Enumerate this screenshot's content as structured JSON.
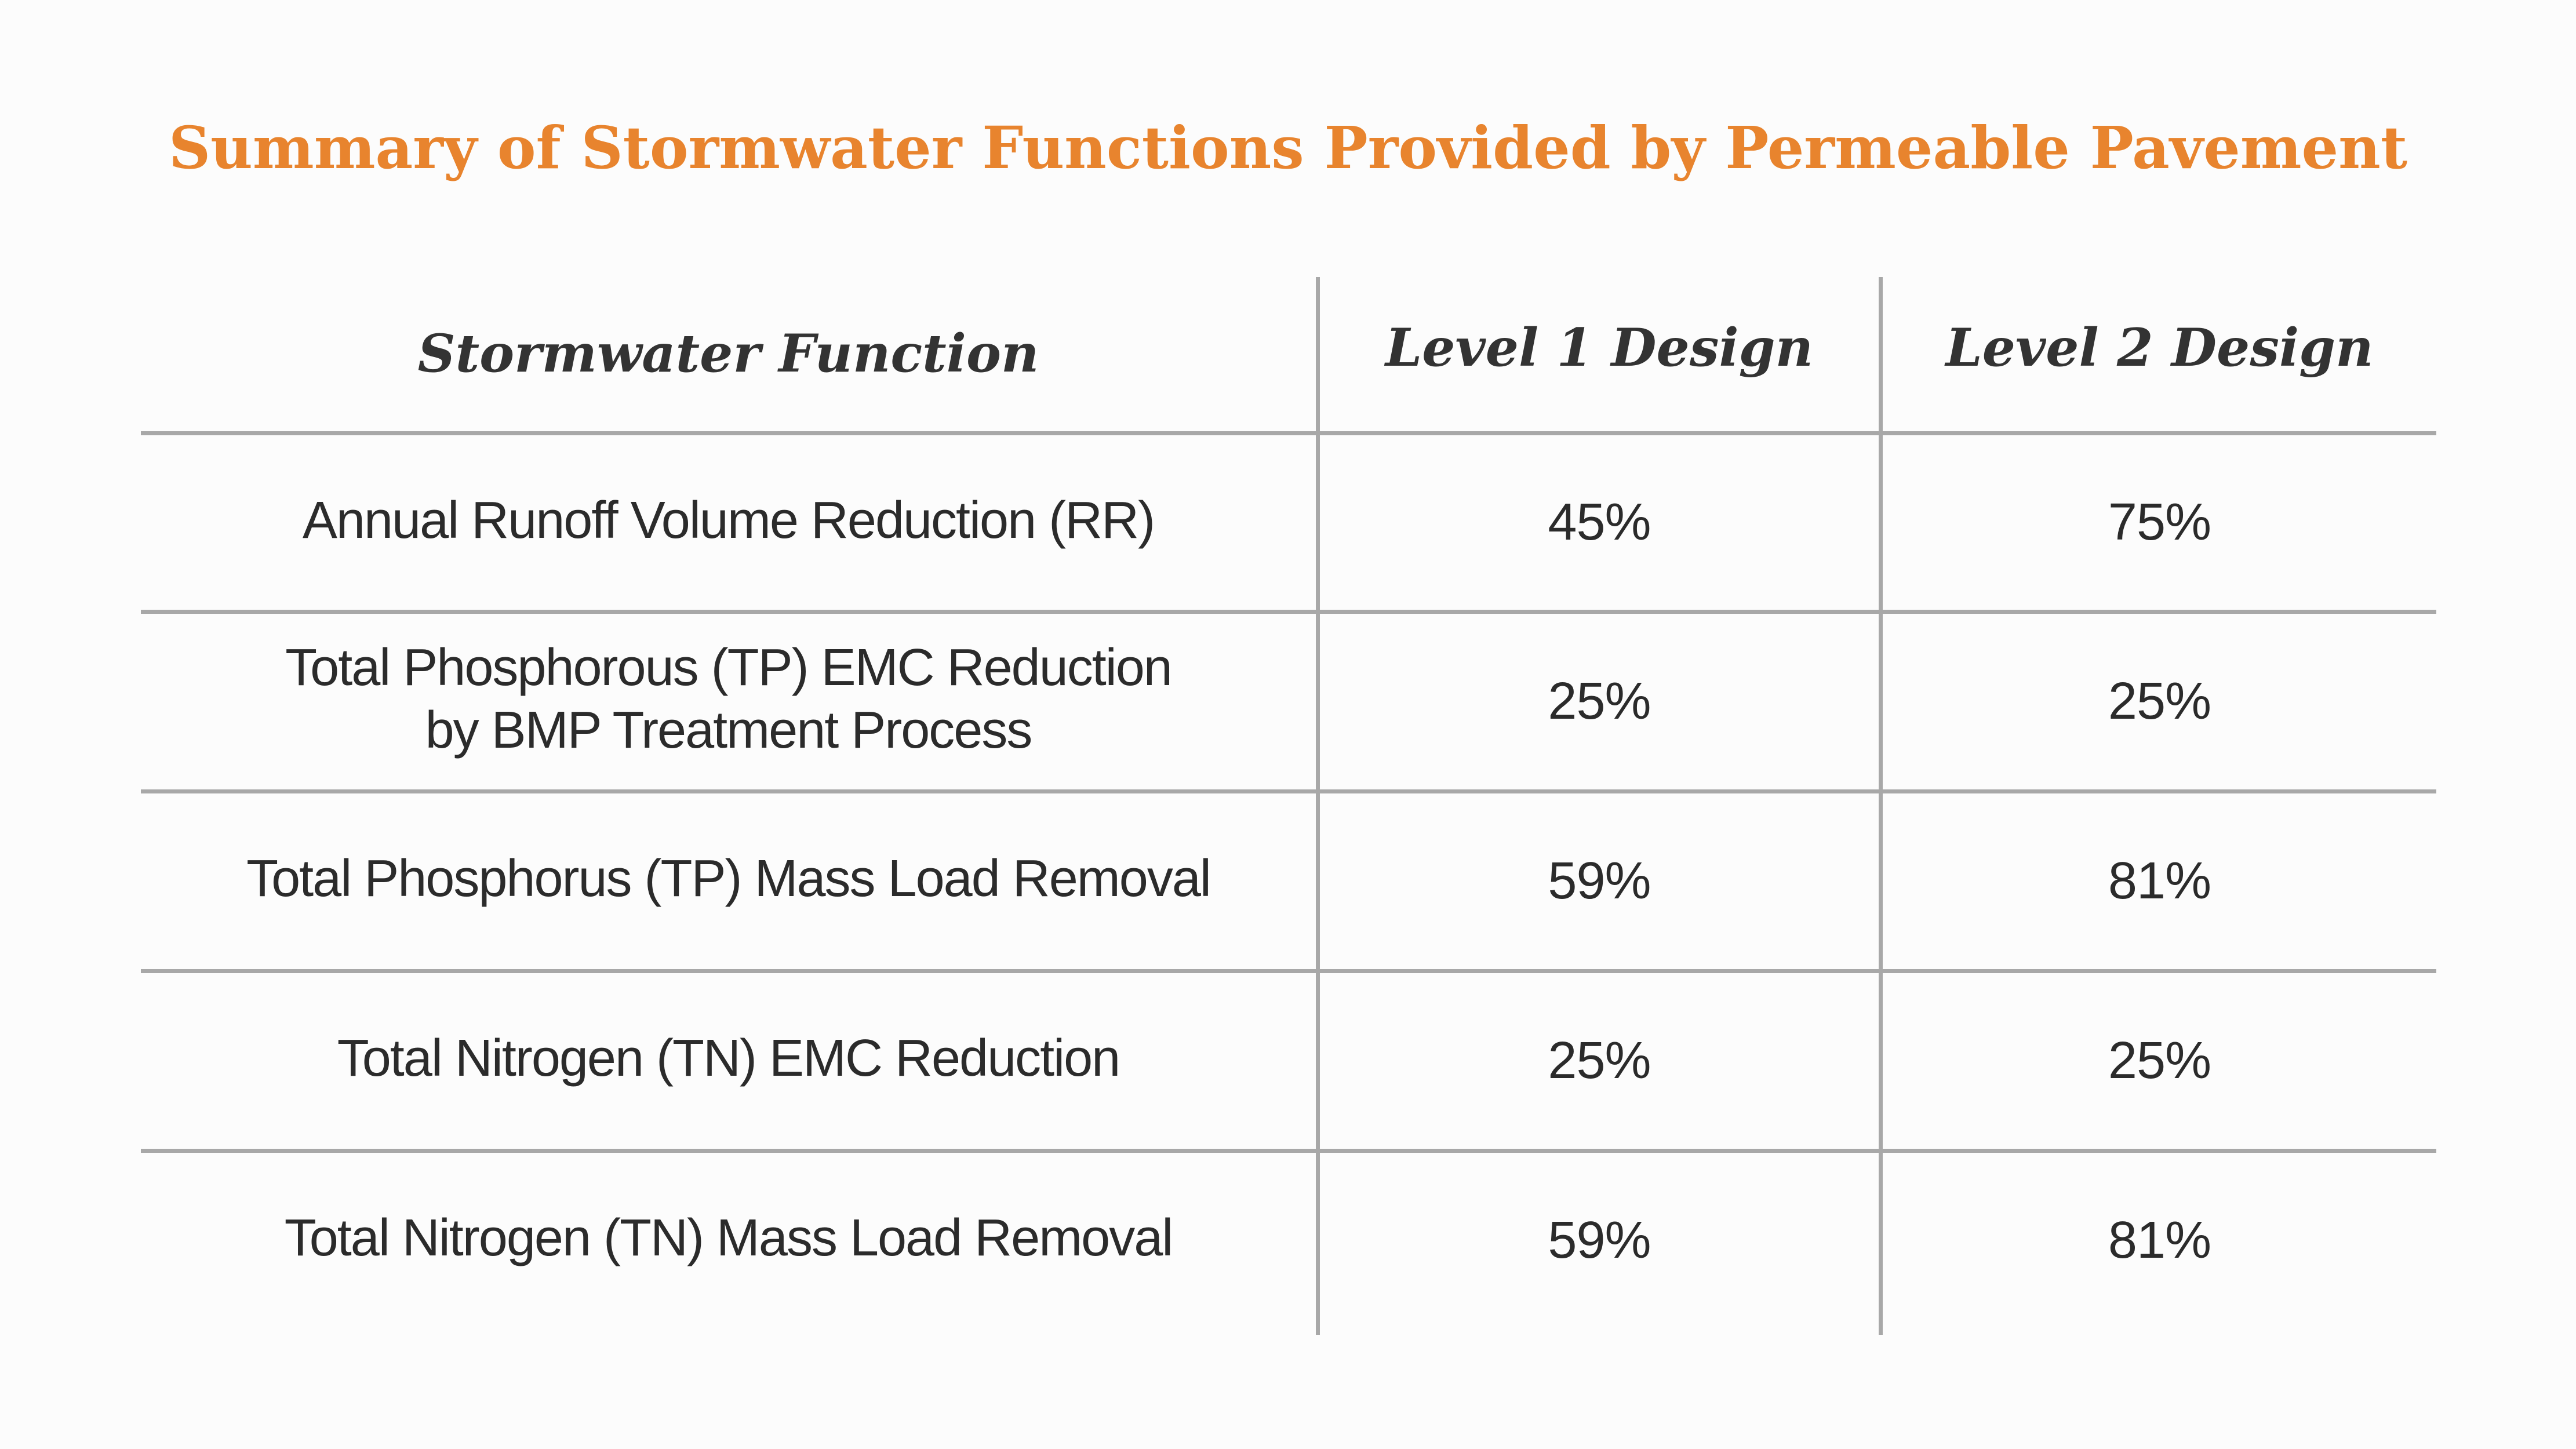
{
  "title": "Summary of Stormwater Functions Provided by Permeable Pavement",
  "table": {
    "headers": [
      "Stormwater Function",
      "Level 1 Design",
      "Level 2 Design"
    ],
    "rows": [
      {
        "function": [
          "Annual Runoff Volume Reduction (RR)"
        ],
        "level1": "45%",
        "level2": "75%"
      },
      {
        "function": [
          "Total Phosphorous (TP) EMC Reduction",
          "by BMP Treatment Process"
        ],
        "level1": "25%",
        "level2": "25%"
      },
      {
        "function": [
          "Total Phosphorus (TP) Mass Load Removal"
        ],
        "level1": "59%",
        "level2": "81%"
      },
      {
        "function": [
          "Total Nitrogen (TN) EMC Reduction"
        ],
        "level1": "25%",
        "level2": "25%"
      },
      {
        "function": [
          "Total Nitrogen (TN) Mass Load Removal"
        ],
        "level1": "59%",
        "level2": "81%"
      }
    ]
  },
  "colors": {
    "title": "#e8842e",
    "rule": "#a8a8a8",
    "text": "#2b2b2b",
    "background": "#fcfcfc"
  }
}
